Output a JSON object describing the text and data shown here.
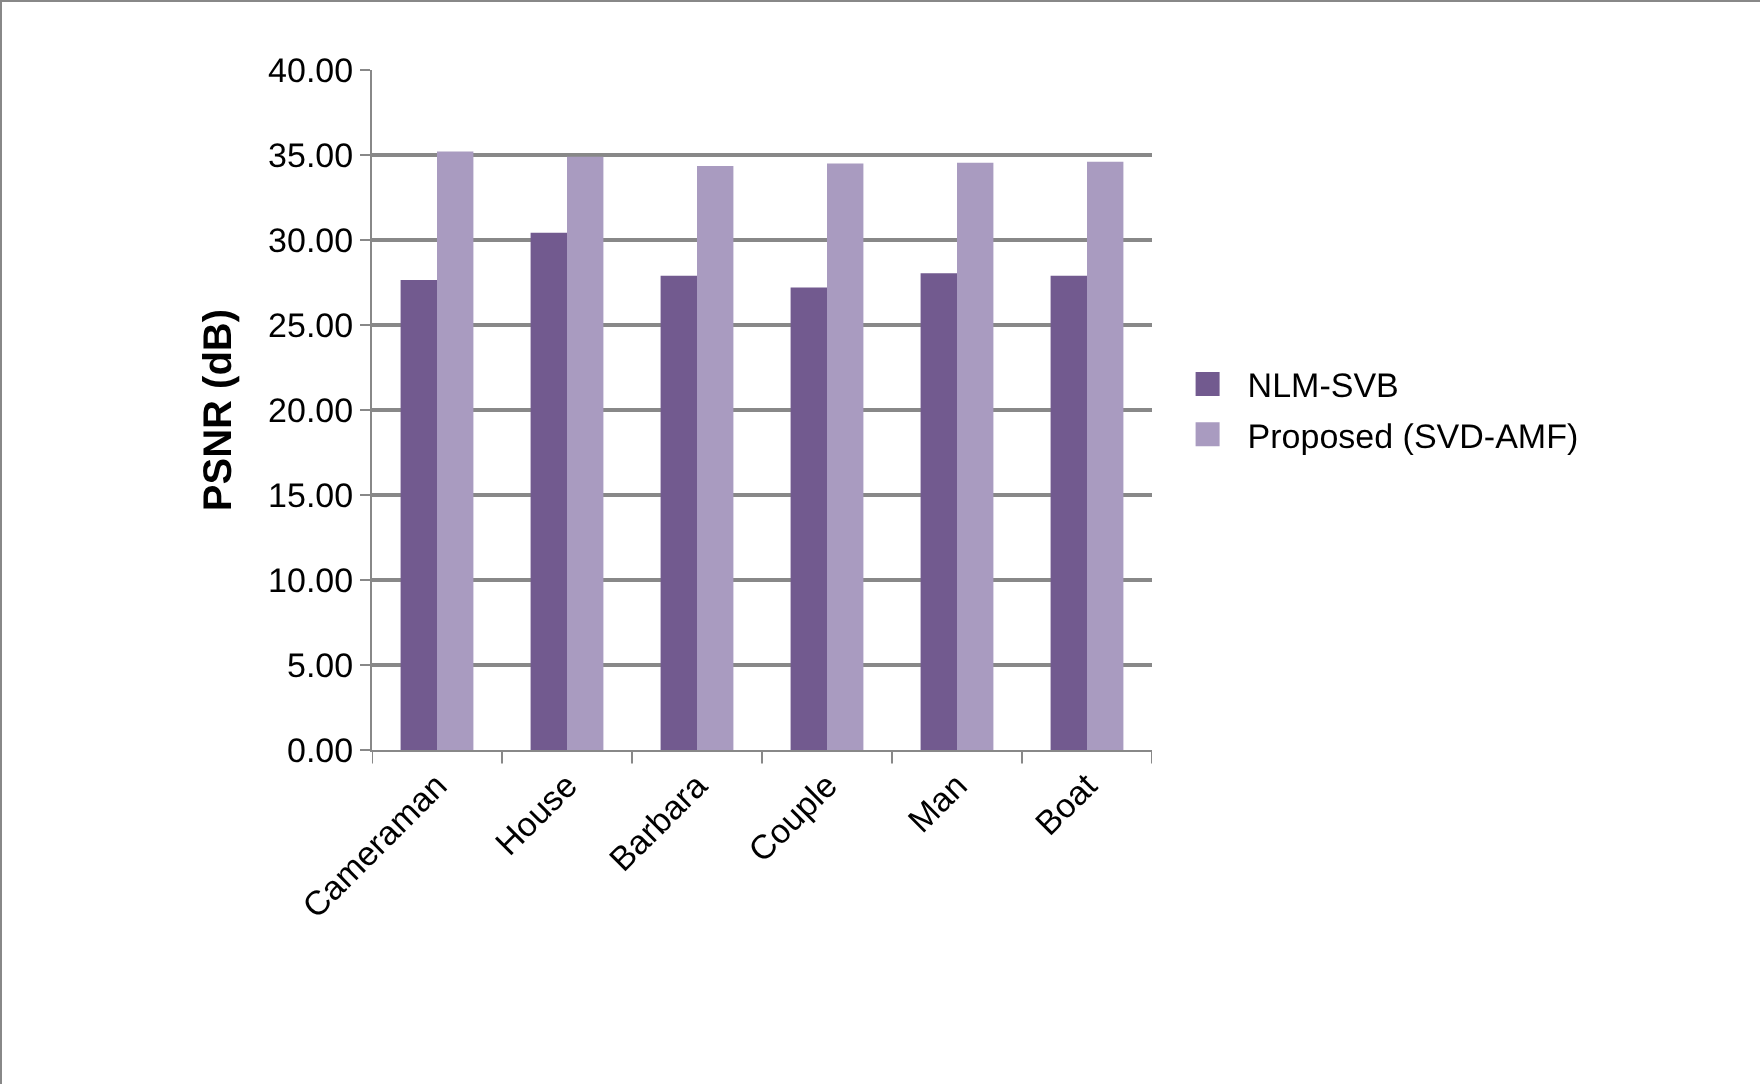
{
  "chart_data": {
    "type": "bar",
    "ylabel": "PSNR (dB)",
    "categories": [
      "Cameraman",
      "House",
      "Barbara",
      "Couple",
      "Man",
      "Boat"
    ],
    "series": [
      {
        "name": "NLM-SVB",
        "color": "#725a8f",
        "values": [
          27.65,
          30.43,
          27.9,
          27.2,
          28.05,
          27.9
        ]
      },
      {
        "name": "Proposed (SVD-AMF)",
        "color": "#a99bc0",
        "values": [
          35.2,
          34.9,
          34.35,
          34.5,
          34.55,
          34.6
        ]
      }
    ],
    "ylim": [
      0,
      40
    ],
    "yticks": [
      {
        "value": 0,
        "label": "0.00"
      },
      {
        "value": 5,
        "label": "5.00"
      },
      {
        "value": 10,
        "label": "10.00"
      },
      {
        "value": 15,
        "label": "15.00"
      },
      {
        "value": 20,
        "label": "20.00"
      },
      {
        "value": 25,
        "label": "25.00"
      },
      {
        "value": 30,
        "label": "30.00"
      },
      {
        "value": 35,
        "label": "35.00"
      },
      {
        "value": 40,
        "label": "40.00"
      }
    ],
    "grid": "y",
    "legend": "right"
  }
}
